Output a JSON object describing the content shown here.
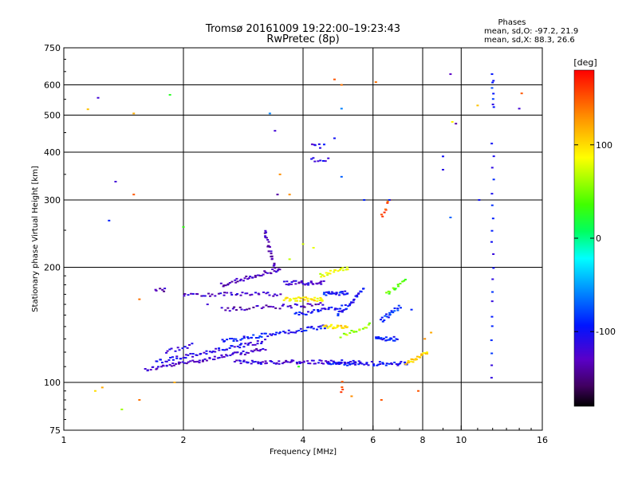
{
  "chart_data": {
    "type": "scatter",
    "title": "Tromsø 20161009 19:22:00–19:23:43",
    "subtitle": "RwPretec (8p)",
    "xlabel": "Frequency [MHz]",
    "ylabel": "Stationary phase Virtual Height [km]",
    "xscale": "log",
    "yscale": "log",
    "xlim": [
      1,
      16
    ],
    "ylim": [
      75,
      750
    ],
    "grid": true,
    "x_ticks": [
      {
        "v": 1,
        "label": "1"
      },
      {
        "v": 2,
        "label": "2"
      },
      {
        "v": 4,
        "label": "4"
      },
      {
        "v": 6,
        "label": "6"
      },
      {
        "v": 8,
        "label": "8"
      },
      {
        "v": 10,
        "label": "10"
      },
      {
        "v": 16,
        "label": "16"
      }
    ],
    "x_grid": [
      2,
      4,
      6,
      8,
      10
    ],
    "y_ticks": [
      {
        "v": 75,
        "label": "75"
      },
      {
        "v": 100,
        "label": "100"
      },
      {
        "v": 200,
        "label": "200"
      },
      {
        "v": 300,
        "label": "300"
      },
      {
        "v": 400,
        "label": "400"
      },
      {
        "v": 500,
        "label": "500"
      },
      {
        "v": 600,
        "label": "600"
      },
      {
        "v": 750,
        "label": "750"
      }
    ],
    "y_grid": [
      100,
      200,
      300,
      400,
      500,
      600
    ],
    "stats": {
      "title": "Phases",
      "line1": "mean, sd,O:  -97.2, 21.9",
      "line2": "mean, sd,X:  88.3, 26.6"
    },
    "colorbar": {
      "label": "[deg]",
      "range": [
        -180,
        180
      ],
      "ticks": [
        {
          "v": 100,
          "label": "100"
        },
        {
          "v": 0,
          "label": "0"
        },
        {
          "v": -100,
          "label": "-100"
        }
      ]
    },
    "traces": [
      {
        "x0": 1.6,
        "x1": 3.2,
        "y0": 108,
        "y1": 122,
        "phase": -125,
        "n": 70
      },
      {
        "x0": 1.7,
        "x1": 3.2,
        "y0": 113,
        "y1": 128,
        "phase": -110,
        "n": 60
      },
      {
        "x0": 2.7,
        "x1": 5.5,
        "y0": 113,
        "y1": 113,
        "phase": -118,
        "n": 80
      },
      {
        "x0": 2.5,
        "x1": 4.6,
        "y0": 128,
        "y1": 140,
        "phase": -95,
        "n": 60
      },
      {
        "x0": 4.6,
        "x1": 7.3,
        "y0": 112,
        "y1": 112,
        "phase": -100,
        "n": 50
      },
      {
        "x0": 7.3,
        "x1": 8.2,
        "y0": 112,
        "y1": 120,
        "phase": 105,
        "n": 24
      },
      {
        "x0": 4.5,
        "x1": 5.2,
        "y0": 140,
        "y1": 140,
        "phase": 100,
        "n": 22
      },
      {
        "x0": 2.0,
        "x1": 3.5,
        "y0": 170,
        "y1": 170,
        "phase": -125,
        "n": 40
      },
      {
        "x0": 2.5,
        "x1": 4.5,
        "y0": 155,
        "y1": 160,
        "phase": -130,
        "n": 40
      },
      {
        "x0": 2.5,
        "x1": 3.5,
        "y0": 180,
        "y1": 198,
        "phase": -130,
        "n": 40
      },
      {
        "x0": 3.4,
        "x1": 3.2,
        "y0": 200,
        "y1": 248,
        "phase": -135,
        "n": 24
      },
      {
        "x0": 3.6,
        "x1": 4.5,
        "y0": 165,
        "y1": 165,
        "phase": 95,
        "n": 35
      },
      {
        "x0": 3.6,
        "x1": 4.5,
        "y0": 182,
        "y1": 182,
        "phase": -120,
        "n": 30
      },
      {
        "x0": 3.8,
        "x1": 5.0,
        "y0": 150,
        "y1": 158,
        "phase": -100,
        "n": 26
      },
      {
        "x0": 4.4,
        "x1": 5.2,
        "y0": 190,
        "y1": 200,
        "phase": 80,
        "n": 20
      },
      {
        "x0": 4.5,
        "x1": 5.2,
        "y0": 170,
        "y1": 172,
        "phase": -95,
        "n": 24
      },
      {
        "x0": 4.9,
        "x1": 5.7,
        "y0": 150,
        "y1": 175,
        "phase": -100,
        "n": 28
      },
      {
        "x0": 5.0,
        "x1": 5.9,
        "y0": 132,
        "y1": 142,
        "phase": 60,
        "n": 16
      },
      {
        "x0": 6.1,
        "x1": 6.9,
        "y0": 130,
        "y1": 130,
        "phase": -95,
        "n": 22
      },
      {
        "x0": 6.3,
        "x1": 7.0,
        "y0": 145,
        "y1": 158,
        "phase": -90,
        "n": 20
      },
      {
        "x0": 6.5,
        "x1": 7.2,
        "y0": 170,
        "y1": 185,
        "phase": 40,
        "n": 14
      },
      {
        "x0": 4.2,
        "x1": 4.6,
        "y0": 382,
        "y1": 382,
        "phase": -105,
        "n": 8
      },
      {
        "x0": 4.2,
        "x1": 4.5,
        "y0": 415,
        "y1": 415,
        "phase": -110,
        "n": 6
      },
      {
        "x0": 1.8,
        "x1": 2.1,
        "y0": 120,
        "y1": 125,
        "phase": -120,
        "n": 12
      },
      {
        "x0": 1.7,
        "x1": 1.8,
        "y0": 175,
        "y1": 175,
        "phase": -130,
        "n": 6
      },
      {
        "x0": 12.0,
        "x1": 12.0,
        "y0": 104,
        "y1": 420,
        "phase": -100,
        "n": 20
      },
      {
        "x0": 12.0,
        "x1": 12.0,
        "y0": 520,
        "y1": 640,
        "phase": -95,
        "n": 8
      },
      {
        "x0": 6.3,
        "x1": 6.6,
        "y0": 270,
        "y1": 300,
        "phase": 150,
        "n": 8
      },
      {
        "x0": 5.0,
        "x1": 5.0,
        "y0": 95,
        "y1": 100,
        "phase": 150,
        "n": 4
      }
    ],
    "points": [
      {
        "x": 1.22,
        "y": 555,
        "phase": -120
      },
      {
        "x": 1.15,
        "y": 518,
        "phase": 110
      },
      {
        "x": 1.5,
        "y": 505,
        "phase": 120
      },
      {
        "x": 1.85,
        "y": 565,
        "phase": 25
      },
      {
        "x": 1.35,
        "y": 335,
        "phase": -120
      },
      {
        "x": 1.5,
        "y": 310,
        "phase": 150
      },
      {
        "x": 1.3,
        "y": 265,
        "phase": -90
      },
      {
        "x": 1.55,
        "y": 165,
        "phase": 140
      },
      {
        "x": 1.55,
        "y": 90,
        "phase": 140
      },
      {
        "x": 1.25,
        "y": 97,
        "phase": 120
      },
      {
        "x": 1.2,
        "y": 95,
        "phase": 100
      },
      {
        "x": 1.4,
        "y": 85,
        "phase": 60
      },
      {
        "x": 3.3,
        "y": 505,
        "phase": -60
      },
      {
        "x": 3.4,
        "y": 455,
        "phase": -120
      },
      {
        "x": 3.5,
        "y": 350,
        "phase": 130
      },
      {
        "x": 3.45,
        "y": 310,
        "phase": -140
      },
      {
        "x": 3.7,
        "y": 310,
        "phase": 130
      },
      {
        "x": 4.8,
        "y": 620,
        "phase": 150
      },
      {
        "x": 5.0,
        "y": 600,
        "phase": 140
      },
      {
        "x": 5.0,
        "y": 520,
        "phase": -60
      },
      {
        "x": 4.8,
        "y": 435,
        "phase": -100
      },
      {
        "x": 5.0,
        "y": 345,
        "phase": -70
      },
      {
        "x": 6.1,
        "y": 610,
        "phase": 140
      },
      {
        "x": 5.7,
        "y": 300,
        "phase": -90
      },
      {
        "x": 6.6,
        "y": 300,
        "phase": -90
      },
      {
        "x": 9.0,
        "y": 390,
        "phase": -100
      },
      {
        "x": 9.0,
        "y": 360,
        "phase": -110
      },
      {
        "x": 9.4,
        "y": 640,
        "phase": -130
      },
      {
        "x": 9.5,
        "y": 480,
        "phase": 90
      },
      {
        "x": 9.7,
        "y": 475,
        "phase": -140
      },
      {
        "x": 11.0,
        "y": 530,
        "phase": 110
      },
      {
        "x": 11.1,
        "y": 300,
        "phase": -100
      },
      {
        "x": 14.2,
        "y": 570,
        "phase": 150
      },
      {
        "x": 14.0,
        "y": 520,
        "phase": -120
      },
      {
        "x": 9.4,
        "y": 270,
        "phase": -70
      },
      {
        "x": 7.8,
        "y": 95,
        "phase": 150
      },
      {
        "x": 6.3,
        "y": 90,
        "phase": 150
      },
      {
        "x": 5.3,
        "y": 92,
        "phase": 130
      },
      {
        "x": 3.9,
        "y": 110,
        "phase": 30
      },
      {
        "x": 2.3,
        "y": 160,
        "phase": -120
      },
      {
        "x": 8.1,
        "y": 130,
        "phase": 130
      },
      {
        "x": 8.4,
        "y": 135,
        "phase": 120
      },
      {
        "x": 7.5,
        "y": 155,
        "phase": -90
      },
      {
        "x": 4.0,
        "y": 230,
        "phase": 75
      },
      {
        "x": 4.25,
        "y": 225,
        "phase": 80
      },
      {
        "x": 3.7,
        "y": 210,
        "phase": 70
      },
      {
        "x": 1.9,
        "y": 100,
        "phase": 120
      },
      {
        "x": 2.0,
        "y": 255,
        "phase": 30
      }
    ]
  }
}
